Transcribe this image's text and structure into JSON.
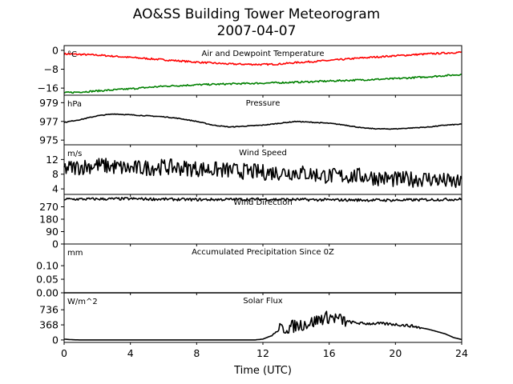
{
  "figure": {
    "title_line1": "AO&SS Building Tower Meteorogram",
    "title_line2": "2007-04-07",
    "xlabel": "Time (UTC)"
  },
  "chart_data": [
    {
      "type": "line",
      "title": "Air and Dewpoint Temperature",
      "unit_label": "°C",
      "xlim": [
        0,
        24
      ],
      "ylim": [
        -19,
        2
      ],
      "yticks": [
        0,
        -8,
        -16
      ],
      "ytick_labels": [
        "0",
        "−8",
        "−16"
      ],
      "series": [
        {
          "color": "#ff0000",
          "x": [
            0,
            2,
            4,
            6,
            8,
            10,
            12,
            13,
            14,
            16,
            18,
            20,
            22,
            24
          ],
          "y": [
            -1.5,
            -2.0,
            -3.0,
            -4.0,
            -5.0,
            -5.8,
            -6.0,
            -5.8,
            -5.2,
            -4.3,
            -3.2,
            -2.3,
            -1.5,
            -0.8
          ]
        },
        {
          "color": "#008000",
          "x": [
            0,
            2,
            4,
            6,
            8,
            10,
            12,
            14,
            16,
            18,
            20,
            22,
            24
          ],
          "y": [
            -18.0,
            -17.2,
            -16.3,
            -15.2,
            -14.6,
            -14.2,
            -13.9,
            -13.5,
            -13.0,
            -12.5,
            -12.0,
            -11.2,
            -10.2
          ]
        }
      ]
    },
    {
      "type": "line",
      "title": "Pressure",
      "unit_label": "hPa",
      "xlim": [
        0,
        24
      ],
      "ylim": [
        974.5,
        979.8
      ],
      "yticks": [
        979,
        977,
        975
      ],
      "ytick_labels": [
        "979",
        "977",
        "975"
      ],
      "series": [
        {
          "color": "#000000",
          "x": [
            0,
            1,
            2,
            3,
            4,
            5,
            6,
            7,
            8,
            9,
            10,
            11,
            12,
            13,
            14,
            15,
            16,
            17,
            18,
            19,
            20,
            21,
            22,
            23,
            24
          ],
          "y": [
            976.9,
            977.2,
            977.6,
            977.8,
            977.7,
            977.6,
            977.5,
            977.3,
            977.0,
            976.6,
            976.4,
            976.5,
            976.6,
            976.8,
            977.0,
            976.9,
            976.8,
            976.6,
            976.3,
            976.2,
            976.2,
            976.3,
            976.4,
            976.6,
            976.7
          ]
        }
      ]
    },
    {
      "type": "line",
      "title": "Wind Speed",
      "unit_label": "m/s",
      "xlim": [
        0,
        24
      ],
      "ylim": [
        2.5,
        16
      ],
      "yticks": [
        12,
        8,
        4
      ],
      "ytick_labels": [
        "12",
        "8",
        "4"
      ],
      "series": [
        {
          "color": "#000000",
          "x": [
            0,
            2,
            4,
            6,
            8,
            10,
            12,
            14,
            16,
            18,
            20,
            22,
            24
          ],
          "y": [
            9.5,
            10.5,
            9.5,
            10.0,
            9.5,
            9.0,
            8.5,
            8.5,
            7.5,
            7.5,
            6.5,
            6.8,
            5.5
          ]
        }
      ]
    },
    {
      "type": "line",
      "title": "Wind Direction",
      "unit_label": "",
      "xlim": [
        0,
        24
      ],
      "ylim": [
        0,
        360
      ],
      "yticks": [
        270,
        180,
        90,
        0
      ],
      "ytick_labels": [
        "270",
        "180",
        "90",
        "0"
      ],
      "series": [
        {
          "color": "#000000",
          "x": [
            0,
            4,
            8,
            12,
            16,
            20,
            24
          ],
          "y": [
            325,
            328,
            322,
            325,
            320,
            318,
            325
          ]
        }
      ]
    },
    {
      "type": "line",
      "title": "Accumulated Precipitation Since 0Z",
      "unit_label": "mm",
      "xlim": [
        0,
        24
      ],
      "ylim": [
        0,
        0.18
      ],
      "yticks": [
        0.1,
        0.05,
        0.0
      ],
      "ytick_labels": [
        "0.10",
        "0.05",
        "0.00"
      ],
      "series": [
        {
          "color": "#000000",
          "x": [
            0,
            24
          ],
          "y": [
            0,
            0
          ]
        }
      ]
    },
    {
      "type": "line",
      "title": "Solar Flux",
      "unit_label": "W/m^2",
      "xlim": [
        0,
        24
      ],
      "ylim": [
        -60,
        1150
      ],
      "yticks": [
        736,
        368,
        0
      ],
      "ytick_labels": [
        "736",
        "368",
        "0"
      ],
      "series": [
        {
          "color": "#000000",
          "x": [
            0,
            0.5,
            1,
            11.5,
            12,
            12.5,
            13,
            14,
            15,
            15.5,
            16,
            16.5,
            17,
            18,
            19,
            20,
            21,
            22,
            23,
            23.5,
            24
          ],
          "y": [
            20,
            5,
            0,
            0,
            20,
            100,
            250,
            350,
            430,
            520,
            560,
            520,
            450,
            400,
            400,
            380,
            340,
            260,
            150,
            60,
            10
          ]
        }
      ]
    }
  ],
  "xaxis": {
    "ticks": [
      0,
      4,
      8,
      12,
      16,
      20,
      24
    ],
    "tick_labels": [
      "0",
      "4",
      "8",
      "12",
      "16",
      "20",
      "24"
    ]
  }
}
